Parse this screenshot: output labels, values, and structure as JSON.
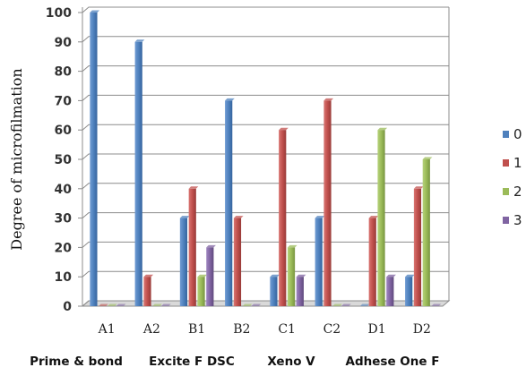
{
  "chart_data": {
    "type": "bar",
    "categories": [
      "A1",
      "A2",
      "B1",
      "B2",
      "C1",
      "C2",
      "D1",
      "D2"
    ],
    "series": [
      {
        "name": "0",
        "values": [
          100,
          90,
          30,
          70,
          10,
          30,
          0,
          10
        ]
      },
      {
        "name": "1",
        "values": [
          0,
          10,
          40,
          30,
          60,
          70,
          30,
          40
        ]
      },
      {
        "name": "2",
        "values": [
          0,
          0,
          10,
          0,
          20,
          0,
          60,
          50
        ]
      },
      {
        "name": "3",
        "values": [
          0,
          0,
          20,
          0,
          10,
          0,
          10,
          0
        ]
      }
    ],
    "ylim": [
      0,
      100
    ],
    "yticks": [
      0,
      10,
      20,
      30,
      40,
      50,
      60,
      70,
      80,
      90,
      100
    ],
    "ylabel": "Degree of microfilmation",
    "xlabel": "",
    "group_labels": [
      "Prime & bond",
      "Excite F DSC",
      "Xeno V",
      "Adhese One F"
    ],
    "grid": true,
    "legend_position": "right",
    "colors": [
      "#4f81bd",
      "#c0504d",
      "#9bbb59",
      "#8064a2"
    ]
  }
}
